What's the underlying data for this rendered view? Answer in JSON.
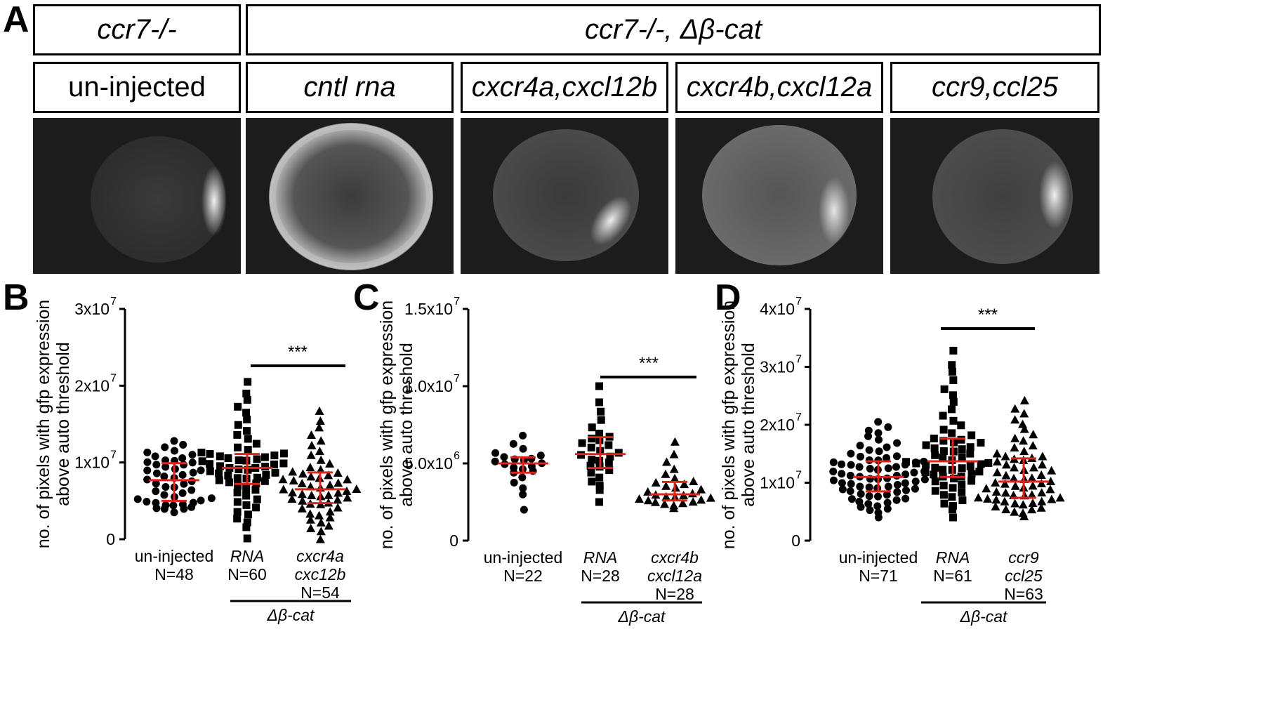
{
  "panels": {
    "a": "A",
    "b": "B",
    "c": "C",
    "d": "D"
  },
  "headers": {
    "top_left": "ccr7-/-",
    "top_right": "ccr7-/-, Δβ-cat",
    "sub": [
      "un-injected",
      "cntl rna",
      "cxcr4a,cxcl12b",
      "cxcr4b,cxcl12a",
      "ccr9,ccl25"
    ]
  },
  "ylabel_line1": "no. of pixels with gfp expression",
  "ylabel_line2": "above auto threshold",
  "group_label": "Δβ-cat",
  "significance": "***",
  "colors": {
    "marker": "#000000",
    "errorbar": "#e0241b",
    "tile_bg": "#1c1c1c"
  },
  "chart_data": [
    {
      "panel": "B",
      "type": "scatter",
      "ylim": [
        0,
        30000000
      ],
      "yticks": [
        {
          "value": 0,
          "mantissa": "0",
          "exp": ""
        },
        {
          "value": 10000000,
          "mantissa": "1x10",
          "exp": "7"
        },
        {
          "value": 20000000,
          "mantissa": "2x10",
          "exp": "7"
        },
        {
          "value": 30000000,
          "mantissa": "3x10",
          "exp": "7"
        }
      ],
      "groups": [
        {
          "label_line1": "un-injected",
          "label_line1_italic": false,
          "label_line2": "",
          "n_label": "N=48",
          "marker": "circle",
          "n": 48,
          "min": 3500000,
          "max": 12800000,
          "median": 7700000,
          "q1": 5000000,
          "q3": 9900000
        },
        {
          "label_line1": "RNA",
          "label_line1_italic": true,
          "label_line2": "",
          "n_label": "N=60",
          "marker": "square",
          "n": 60,
          "min": 100000,
          "max": 20500000,
          "median": 9300000,
          "q1": 7200000,
          "q3": 11100000
        },
        {
          "label_line1": "cxcr4a",
          "label_line1_italic": true,
          "label_line2": "cxc12b",
          "n_label": "N=54",
          "marker": "triangle",
          "n": 54,
          "min": 0,
          "max": 16700000,
          "median": 6500000,
          "q1": 4700000,
          "q3": 8700000
        }
      ]
    },
    {
      "panel": "C",
      "type": "scatter",
      "ylim": [
        0,
        15000000
      ],
      "yticks": [
        {
          "value": 0,
          "mantissa": "0",
          "exp": ""
        },
        {
          "value": 5000000,
          "mantissa": "5.0x10",
          "exp": "6"
        },
        {
          "value": 10000000,
          "mantissa": "1.0x10",
          "exp": "7"
        },
        {
          "value": 15000000,
          "mantissa": "1.5x10",
          "exp": "7"
        }
      ],
      "groups": [
        {
          "label_line1": "un-injected",
          "label_line1_italic": false,
          "label_line2": "",
          "n_label": "N=22",
          "marker": "circle",
          "n": 22,
          "min": 2000000,
          "max": 6800000,
          "median": 5000000,
          "q1": 4400000,
          "q3": 5400000
        },
        {
          "label_line1": "RNA",
          "label_line1_italic": true,
          "label_line2": "",
          "n_label": "N=28",
          "marker": "square",
          "n": 28,
          "min": 2500000,
          "max": 10000000,
          "median": 5600000,
          "q1": 4700000,
          "q3": 6700000
        },
        {
          "label_line1": "cxcr4b",
          "label_line1_italic": true,
          "label_line2": "cxcl12a",
          "n_label": "N=28",
          "marker": "triangle",
          "n": 28,
          "min": 2100000,
          "max": 6400000,
          "median": 3000000,
          "q1": 2600000,
          "q3": 3800000
        }
      ]
    },
    {
      "panel": "D",
      "type": "scatter",
      "ylim": [
        0,
        40000000
      ],
      "yticks": [
        {
          "value": 0,
          "mantissa": "0",
          "exp": ""
        },
        {
          "value": 10000000,
          "mantissa": "1x10",
          "exp": "7"
        },
        {
          "value": 20000000,
          "mantissa": "2x10",
          "exp": "7"
        },
        {
          "value": 30000000,
          "mantissa": "3x10",
          "exp": "7"
        },
        {
          "value": 40000000,
          "mantissa": "4x10",
          "exp": "7"
        }
      ],
      "groups": [
        {
          "label_line1": "un-injected",
          "label_line1_italic": false,
          "label_line2": "",
          "n_label": "N=71",
          "marker": "circle",
          "n": 71,
          "min": 4000000,
          "max": 20500000,
          "median": 11000000,
          "q1": 8500000,
          "q3": 13700000
        },
        {
          "label_line1": "RNA",
          "label_line1_italic": true,
          "label_line2": "",
          "n_label": "N=61",
          "marker": "square",
          "n": 61,
          "min": 4000000,
          "max": 32800000,
          "median": 13700000,
          "q1": 11000000,
          "q3": 17600000
        },
        {
          "label_line1": "ccr9",
          "label_line1_italic": true,
          "label_line2": "ccl25",
          "n_label": "N=63",
          "marker": "triangle",
          "n": 63,
          "min": 4200000,
          "max": 24200000,
          "median": 10200000,
          "q1": 7400000,
          "q3": 14200000
        }
      ]
    }
  ]
}
